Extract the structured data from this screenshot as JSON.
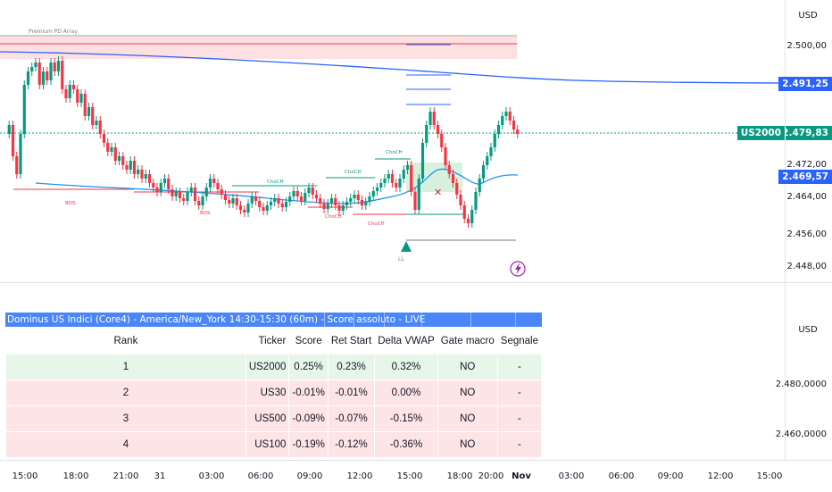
{
  "chart": {
    "currency": "USD",
    "price_labels": [
      "2.500,00",
      "2.472,00",
      "2.464,00",
      "2.456,00",
      "2.448,00"
    ],
    "tags": {
      "ma_upper": {
        "value": "2.491,25",
        "color": "#2962ff"
      },
      "symbol": {
        "name": "US2000",
        "value": "2.479,83",
        "color": "#089981"
      },
      "ma_lower": {
        "value": "2.469,57",
        "color": "#2962ff"
      }
    },
    "zone_label": "Premium PD Array",
    "annotations": {
      "bos_1": "BOS",
      "bos_2": "BOS",
      "choch_1": "ChoCH",
      "choch_2": "ChoCH",
      "choch_3": "ChoCH",
      "choch_4": "ChoCH",
      "choch_5": "ChoCH",
      "ll": "LL"
    },
    "colors": {
      "bull": "#089981",
      "bear": "#f23645",
      "ma_slow": "#2962ff",
      "ma_fast": "#2196f3",
      "zone": "#fde0e2"
    }
  },
  "table_pane": {
    "currency": "USD",
    "price_labels": [
      "2.480,0000",
      "2.460,0000"
    ],
    "title": "Dominus US Indici (Core4) - America/New_York 14:30-15:30 (60m) - Score assoluto - LIVE",
    "headers": [
      "Rank",
      "Ticker",
      "Score",
      "Ret Start",
      "Delta VWAP",
      "Gate macro",
      "Segnale"
    ],
    "rows": [
      [
        "1",
        "US2000",
        "0.25%",
        "0.23%",
        "0.32%",
        "NO",
        "-"
      ],
      [
        "2",
        "US30",
        "-0.01%",
        "-0.01%",
        "0.00%",
        "NO",
        "-"
      ],
      [
        "3",
        "US500",
        "-0.09%",
        "-0.07%",
        "-0.15%",
        "NO",
        "-"
      ],
      [
        "4",
        "US100",
        "-0.19%",
        "-0.12%",
        "-0.36%",
        "NO",
        "-"
      ]
    ]
  },
  "time_axis": [
    "15:00",
    "18:00",
    "21:00",
    "31",
    "03:00",
    "06:00",
    "09:00",
    "12:00",
    "15:00",
    "18:00",
    "20:00",
    "Nov",
    "03:00",
    "06:00",
    "09:00",
    "12:00",
    "15:00"
  ]
}
